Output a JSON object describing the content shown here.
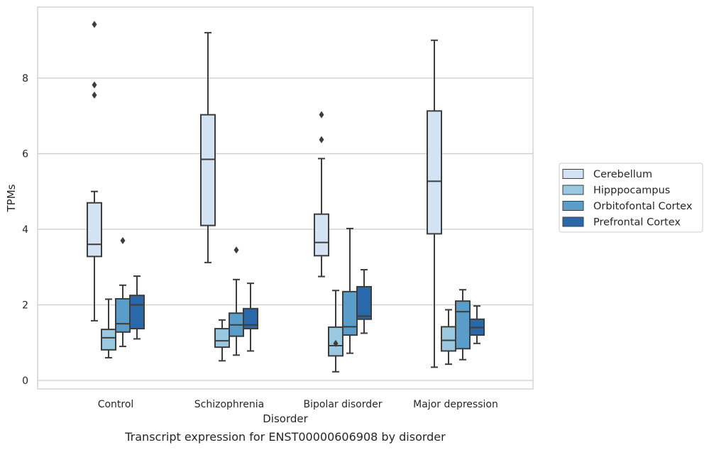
{
  "chart_data": {
    "type": "box",
    "title": "",
    "caption": "Transcript expression for ENST00000606908 by disorder",
    "xlabel": "Disorder",
    "ylabel": "TPMs",
    "ylim": [
      -0.2,
      9.8
    ],
    "yticks": [
      0,
      2,
      4,
      6,
      8
    ],
    "grid": "horizontal",
    "legend_position": "right",
    "categories": [
      "Control",
      "Schizophrenia",
      "Bipolar disorder",
      "Major depression"
    ],
    "series": [
      {
        "name": "Cerebellum",
        "color": "#d3e3f3",
        "boxes": [
          {
            "whislo": 1.58,
            "q1": 3.28,
            "med": 3.6,
            "q3": 4.7,
            "whishi": 5.0,
            "fliers": [
              7.55,
              7.82,
              9.42
            ]
          },
          {
            "whislo": 3.12,
            "q1": 4.1,
            "med": 5.85,
            "q3": 7.03,
            "whishi": 9.2,
            "fliers": []
          },
          {
            "whislo": 2.75,
            "q1": 3.3,
            "med": 3.65,
            "q3": 4.4,
            "whishi": 5.87,
            "fliers": [
              6.37,
              7.03
            ]
          },
          {
            "whislo": 0.35,
            "q1": 3.88,
            "med": 5.27,
            "q3": 7.13,
            "whishi": 9.0,
            "fliers": []
          }
        ]
      },
      {
        "name": "Hipppocampus",
        "color": "#9ac8e0",
        "boxes": [
          {
            "whislo": 0.6,
            "q1": 0.81,
            "med": 1.13,
            "q3": 1.35,
            "whishi": 2.15,
            "fliers": []
          },
          {
            "whislo": 0.52,
            "q1": 0.88,
            "med": 1.05,
            "q3": 1.37,
            "whishi": 1.6,
            "fliers": []
          },
          {
            "whislo": 0.23,
            "q1": 0.65,
            "med": 0.92,
            "q3": 1.41,
            "whishi": 2.38,
            "fliers": [
              0.98
            ]
          },
          {
            "whislo": 0.43,
            "q1": 0.78,
            "med": 1.06,
            "q3": 1.42,
            "whishi": 1.87,
            "fliers": []
          }
        ]
      },
      {
        "name": "Orbitofontal Cortex",
        "color": "#5a9dc9",
        "boxes": [
          {
            "whislo": 0.9,
            "q1": 1.28,
            "med": 1.5,
            "q3": 2.16,
            "whishi": 2.52,
            "fliers": [
              3.7
            ]
          },
          {
            "whislo": 0.67,
            "q1": 1.17,
            "med": 1.47,
            "q3": 1.78,
            "whishi": 2.67,
            "fliers": [
              3.45
            ]
          },
          {
            "whislo": 0.72,
            "q1": 1.2,
            "med": 1.42,
            "q3": 2.35,
            "whishi": 4.02,
            "fliers": []
          },
          {
            "whislo": 0.55,
            "q1": 0.84,
            "med": 1.82,
            "q3": 2.1,
            "whishi": 2.4,
            "fliers": []
          }
        ]
      },
      {
        "name": "Prefrontal Cortex",
        "color": "#2a68aa",
        "boxes": [
          {
            "whislo": 1.1,
            "q1": 1.37,
            "med": 2.0,
            "q3": 2.25,
            "whishi": 2.76,
            "fliers": []
          },
          {
            "whislo": 0.78,
            "q1": 1.37,
            "med": 1.47,
            "q3": 1.9,
            "whishi": 2.57,
            "fliers": []
          },
          {
            "whislo": 1.25,
            "q1": 1.62,
            "med": 1.7,
            "q3": 2.48,
            "whishi": 2.93,
            "fliers": []
          },
          {
            "whislo": 0.98,
            "q1": 1.2,
            "med": 1.4,
            "q3": 1.62,
            "whishi": 1.97,
            "fliers": []
          }
        ]
      }
    ]
  }
}
